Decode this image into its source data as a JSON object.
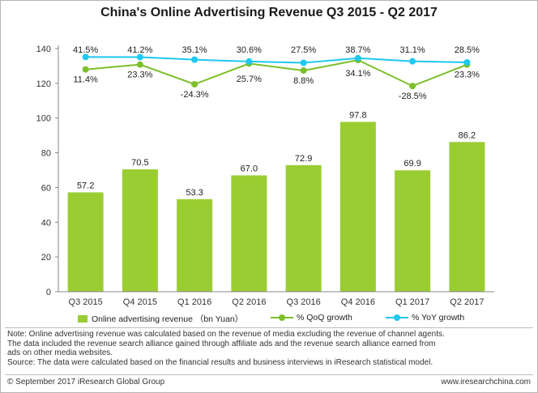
{
  "chart_data": {
    "type": "bar+line",
    "title": "China's Online Advertising Revenue Q3 2015 - Q2 2017",
    "categories": [
      "Q3 2015",
      "Q4 2015",
      "Q1 2016",
      "Q2 2016",
      "Q3 2016",
      "Q4 2016",
      "Q1 2017",
      "Q2 2017"
    ],
    "ylim": [
      0,
      140
    ],
    "yticks": [
      0,
      20,
      40,
      60,
      80,
      100,
      120,
      140
    ],
    "grid": false,
    "legend_position": "bottom",
    "bar_series": {
      "name": "Online advertising revenue （bn Yuan）",
      "values": [
        57.2,
        70.5,
        53.3,
        67.0,
        72.9,
        97.8,
        69.9,
        86.2
      ],
      "labels": [
        "57.2",
        "70.5",
        "53.3",
        "67.0",
        "72.9",
        "97.8",
        "69.9",
        "86.2"
      ],
      "color": "#9acd32"
    },
    "qoq_series": {
      "name": "% QoQ growth",
      "values": [
        11.4,
        23.3,
        -24.3,
        25.7,
        8.8,
        34.1,
        -28.5,
        23.3
      ],
      "labels": [
        "11.4%",
        "23.3%",
        "-24.3%",
        "25.7%",
        "8.8%",
        "34.1%",
        "-28.5%",
        "23.3%"
      ],
      "label_positions": [
        "below",
        "below",
        "below",
        "above",
        "below",
        "below",
        "below",
        "below"
      ],
      "color": "#7cbf2a"
    },
    "yoy_series": {
      "name": "% YoY growth",
      "values": [
        41.5,
        41.2,
        35.1,
        30.6,
        27.5,
        38.7,
        31.1,
        28.5
      ],
      "labels": [
        "41.5%",
        "41.2%",
        "35.1%",
        "30.6%",
        "27.5%",
        "38.7%",
        "31.1%",
        "28.5%"
      ],
      "color": "#1ec8f0"
    }
  },
  "notes": {
    "line1": "Note: Online advertising revenue was calculated based on the revenue of media excluding the revenue of channel agents.",
    "line2": "The data included the revenue search alliance gained through affiliate ads and the revenue search alliance earned from",
    "line3": "ads on other media  websites.",
    "line4": "Source: The data were calculated based on the financial results and business interviews in iResearch statistical model."
  },
  "footer": {
    "copyright": "© September 2017 iResearch Global Group",
    "website": "www.iresearchchina.com"
  }
}
